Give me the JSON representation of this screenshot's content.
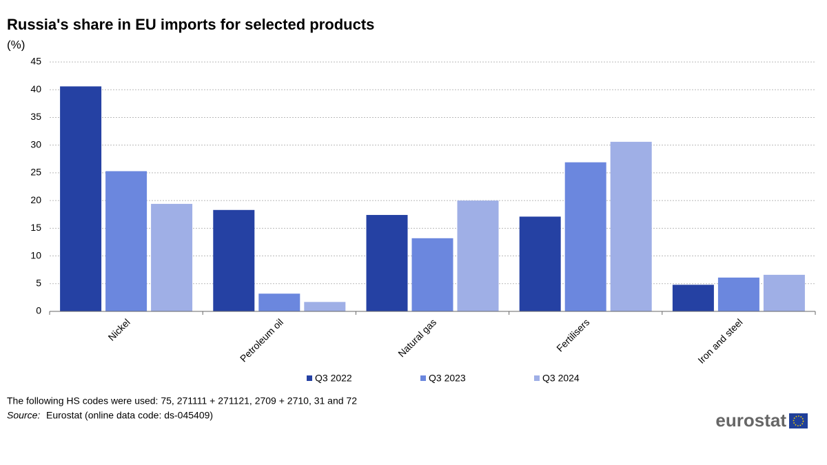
{
  "chart_data": {
    "type": "bar",
    "title": "Russia's share in EU imports for selected products",
    "subtitle": "(%)",
    "categories": [
      "Nickel",
      "Petroleum oil",
      "Natural gas",
      "Fertilisers",
      "Iron and steel"
    ],
    "series": [
      {
        "name": "Q3 2022",
        "color": "#2541a3",
        "values": [
          40.6,
          18.3,
          17.4,
          17.1,
          4.8
        ]
      },
      {
        "name": "Q3 2023",
        "color": "#6b87de",
        "values": [
          25.3,
          3.2,
          13.2,
          26.9,
          6.1
        ]
      },
      {
        "name": "Q3 2024",
        "color": "#9fafe6",
        "values": [
          19.4,
          1.7,
          20.0,
          30.6,
          6.6
        ]
      }
    ],
    "ylim": [
      0,
      45
    ],
    "yticks": [
      0,
      5,
      10,
      15,
      20,
      25,
      30,
      35,
      40,
      45
    ],
    "grid": true,
    "legend": "bottom",
    "note": "The following HS codes were used: 75, 271111 + 271121, 2709 + 2710, 31 and 72",
    "source_label": "Source:",
    "source": "Eurostat (online data code: ds-045409)",
    "logo": "eurostat"
  }
}
